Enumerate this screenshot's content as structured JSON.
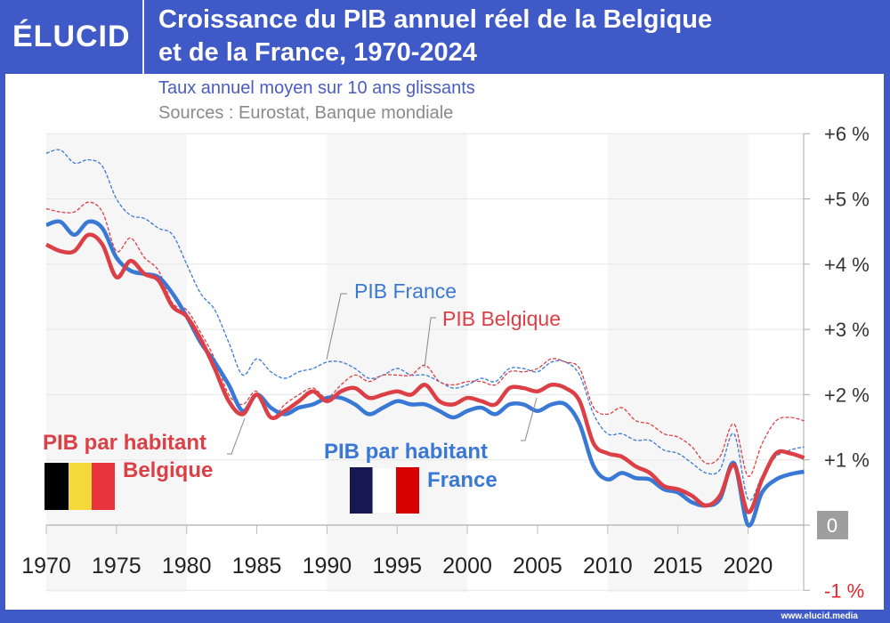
{
  "header": {
    "logo": "ÉLUCID",
    "title_line1": "Croissance du PIB annuel réel de la Belgique",
    "title_line2": "et de la France, 1970-2024"
  },
  "subtitle": "Taux annuel moyen sur 10 ans glissants",
  "sources": "Sources : Eurostat, Banque mondiale",
  "footer": "www.elucid.media",
  "colors": {
    "france": "#3a78d6",
    "belgique": "#dc3f45",
    "header": "#3f59c6"
  },
  "chart_data": {
    "type": "line",
    "x_ticks": [
      "1970",
      "1975",
      "1980",
      "1985",
      "1990",
      "1995",
      "2000",
      "2005",
      "2010",
      "2015",
      "2020"
    ],
    "y_ticks": [
      "+6 %",
      "+5 %",
      "+4 %",
      "+3 %",
      "+2 %",
      "+1 %",
      "0",
      "-1 %"
    ],
    "xlim": [
      1970,
      2024
    ],
    "ylim": [
      -1,
      6
    ],
    "grid": true,
    "x": [
      1970,
      1971,
      1972,
      1973,
      1974,
      1975,
      1976,
      1977,
      1978,
      1979,
      1980,
      1981,
      1982,
      1983,
      1984,
      1985,
      1986,
      1987,
      1988,
      1989,
      1990,
      1991,
      1992,
      1993,
      1994,
      1995,
      1996,
      1997,
      1998,
      1999,
      2000,
      2001,
      2002,
      2003,
      2004,
      2005,
      2006,
      2007,
      2008,
      2009,
      2010,
      2011,
      2012,
      2013,
      2014,
      2015,
      2016,
      2017,
      2018,
      2019,
      2020,
      2021,
      2022,
      2023,
      2024
    ],
    "series": [
      {
        "name": "PIB France",
        "style": "dashed",
        "color": "#3a78d6",
        "values": [
          5.7,
          5.75,
          5.55,
          5.6,
          5.5,
          5.0,
          4.75,
          4.7,
          4.55,
          4.45,
          4.0,
          3.55,
          3.3,
          2.8,
          2.3,
          2.55,
          2.35,
          2.25,
          2.35,
          2.4,
          2.5,
          2.5,
          2.4,
          2.25,
          2.3,
          2.4,
          2.3,
          2.3,
          2.2,
          2.1,
          2.15,
          2.25,
          2.2,
          2.4,
          2.4,
          2.35,
          2.5,
          2.5,
          2.3,
          1.7,
          1.4,
          1.4,
          1.3,
          1.3,
          1.15,
          1.1,
          0.95,
          0.8,
          0.85,
          1.4,
          0.4,
          0.75,
          1.05,
          1.15,
          1.2
        ]
      },
      {
        "name": "PIB Belgique",
        "style": "dashed",
        "color": "#dc3f45",
        "values": [
          4.85,
          4.8,
          4.8,
          4.95,
          4.8,
          4.2,
          4.4,
          4.1,
          3.9,
          3.4,
          3.3,
          2.95,
          2.55,
          2.0,
          1.85,
          2.05,
          1.65,
          1.85,
          2.0,
          2.1,
          1.95,
          2.15,
          2.3,
          2.2,
          2.3,
          2.3,
          2.3,
          2.45,
          2.2,
          2.15,
          2.2,
          2.2,
          2.15,
          2.35,
          2.35,
          2.4,
          2.55,
          2.5,
          2.4,
          1.8,
          1.7,
          1.8,
          1.6,
          1.55,
          1.4,
          1.35,
          1.2,
          0.95,
          1.05,
          1.55,
          0.75,
          1.25,
          1.6,
          1.65,
          1.6
        ]
      },
      {
        "name": "PIB par habitant France",
        "style": "solid",
        "color": "#3a78d6",
        "values": [
          4.6,
          4.65,
          4.45,
          4.65,
          4.55,
          4.1,
          3.9,
          3.85,
          3.8,
          3.55,
          3.2,
          2.8,
          2.5,
          2.15,
          1.75,
          2.0,
          1.8,
          1.7,
          1.8,
          1.85,
          1.95,
          1.95,
          1.85,
          1.7,
          1.8,
          1.9,
          1.85,
          1.85,
          1.75,
          1.65,
          1.75,
          1.8,
          1.7,
          1.85,
          1.85,
          1.75,
          1.85,
          1.85,
          1.55,
          0.9,
          0.7,
          0.8,
          0.72,
          0.7,
          0.55,
          0.5,
          0.35,
          0.3,
          0.4,
          0.95,
          0.0,
          0.5,
          0.7,
          0.78,
          0.82
        ]
      },
      {
        "name": "PIB par habitant Belgique",
        "style": "solid",
        "color": "#dc3f45",
        "values": [
          4.3,
          4.2,
          4.2,
          4.45,
          4.3,
          3.8,
          4.05,
          3.85,
          3.75,
          3.35,
          3.2,
          2.85,
          2.4,
          1.9,
          1.7,
          2.0,
          1.65,
          1.75,
          1.9,
          2.05,
          1.9,
          2.05,
          2.1,
          1.95,
          2.0,
          2.05,
          2.0,
          2.15,
          1.9,
          1.85,
          1.95,
          1.9,
          1.85,
          2.1,
          2.1,
          2.05,
          2.15,
          2.1,
          1.9,
          1.25,
          1.1,
          1.05,
          0.9,
          0.8,
          0.6,
          0.55,
          0.45,
          0.3,
          0.45,
          0.92,
          0.2,
          0.7,
          1.1,
          1.1,
          1.03
        ]
      }
    ],
    "labels": {
      "pib_france": "PIB France",
      "pib_belgique": "PIB Belgique",
      "hab_be_1": "PIB par habitant",
      "hab_be_2": "Belgique",
      "hab_fr_1": "PIB par habitant",
      "hab_fr_2": "France"
    }
  }
}
